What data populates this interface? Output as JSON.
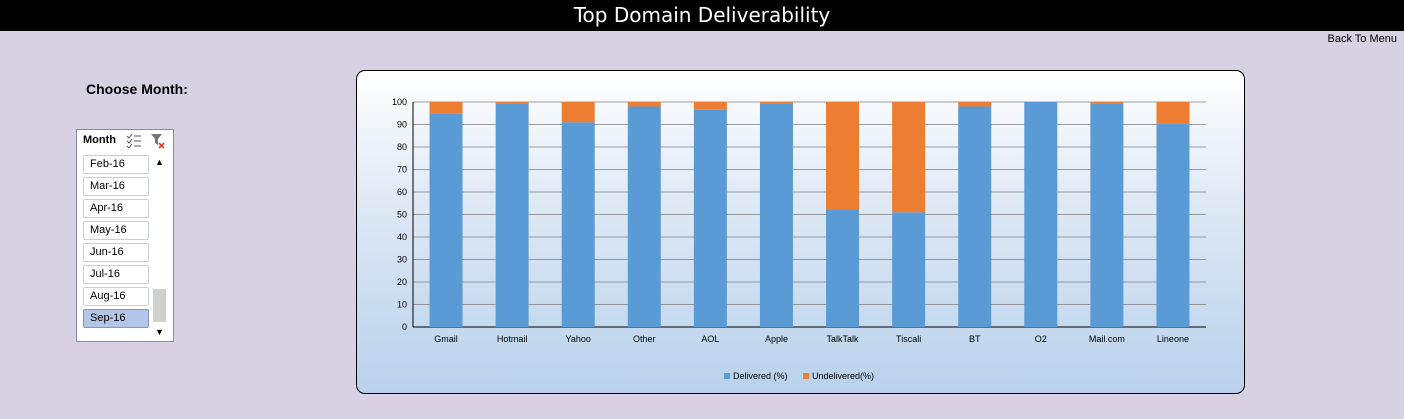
{
  "header": {
    "title": "Top Domain Deliverability"
  },
  "nav": {
    "back_label": "Back To Menu"
  },
  "filter": {
    "label": "Choose Month:"
  },
  "slicer": {
    "title": "Month",
    "items": [
      "Feb-16",
      "Mar-16",
      "Apr-16",
      "May-16",
      "Jun-16",
      "Jul-16",
      "Aug-16",
      "Sep-16"
    ],
    "selected": "Sep-16"
  },
  "colors": {
    "delivered": "#5b9bd5",
    "undelivered": "#ed7d31"
  },
  "chart_data": {
    "type": "bar",
    "stacked": true,
    "categories": [
      "Gmail",
      "Hotmail",
      "Yahoo",
      "Other",
      "AOL",
      "Apple",
      "TalkTalk",
      "Tiscali",
      "BT",
      "O2",
      "Mail.com",
      "Lineone"
    ],
    "series": [
      {
        "name": "Delivered (%)",
        "values": [
          95,
          99.5,
          91,
          98,
          96.5,
          99.5,
          52,
          51,
          98,
          100,
          99.5,
          90.5
        ]
      },
      {
        "name": "Undelivered(%)",
        "values": [
          5,
          0.5,
          9,
          2,
          3.5,
          0.5,
          48,
          49,
          2,
          0,
          0.5,
          9.5
        ]
      }
    ],
    "yticks": [
      0,
      10,
      20,
      30,
      40,
      50,
      60,
      70,
      80,
      90,
      100
    ],
    "ylim": [
      0,
      100
    ],
    "grid": true,
    "legend": "bottom"
  }
}
